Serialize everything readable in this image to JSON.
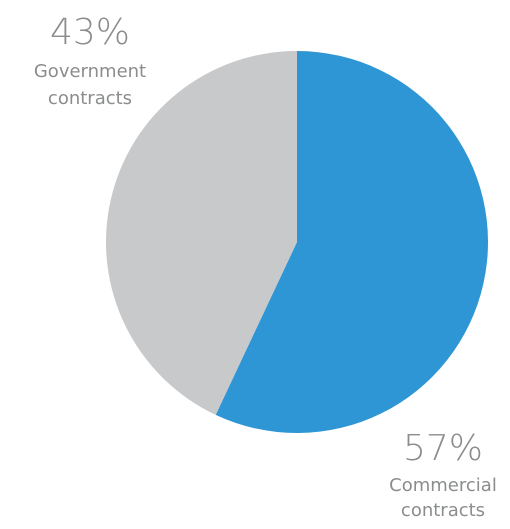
{
  "chart_data": {
    "type": "pie",
    "title": "",
    "slices": [
      {
        "pct_label": "57%",
        "name_lines": [
          "Commercial",
          "contracts"
        ],
        "value": 57,
        "color": "#2f96d5"
      },
      {
        "pct_label": "43%",
        "name_lines": [
          "Government",
          "contracts"
        ],
        "value": 43,
        "color": "#c8c9cb"
      }
    ],
    "label_color": "#8a8c8e",
    "start_angle_deg": 0,
    "direction": "clockwise"
  }
}
